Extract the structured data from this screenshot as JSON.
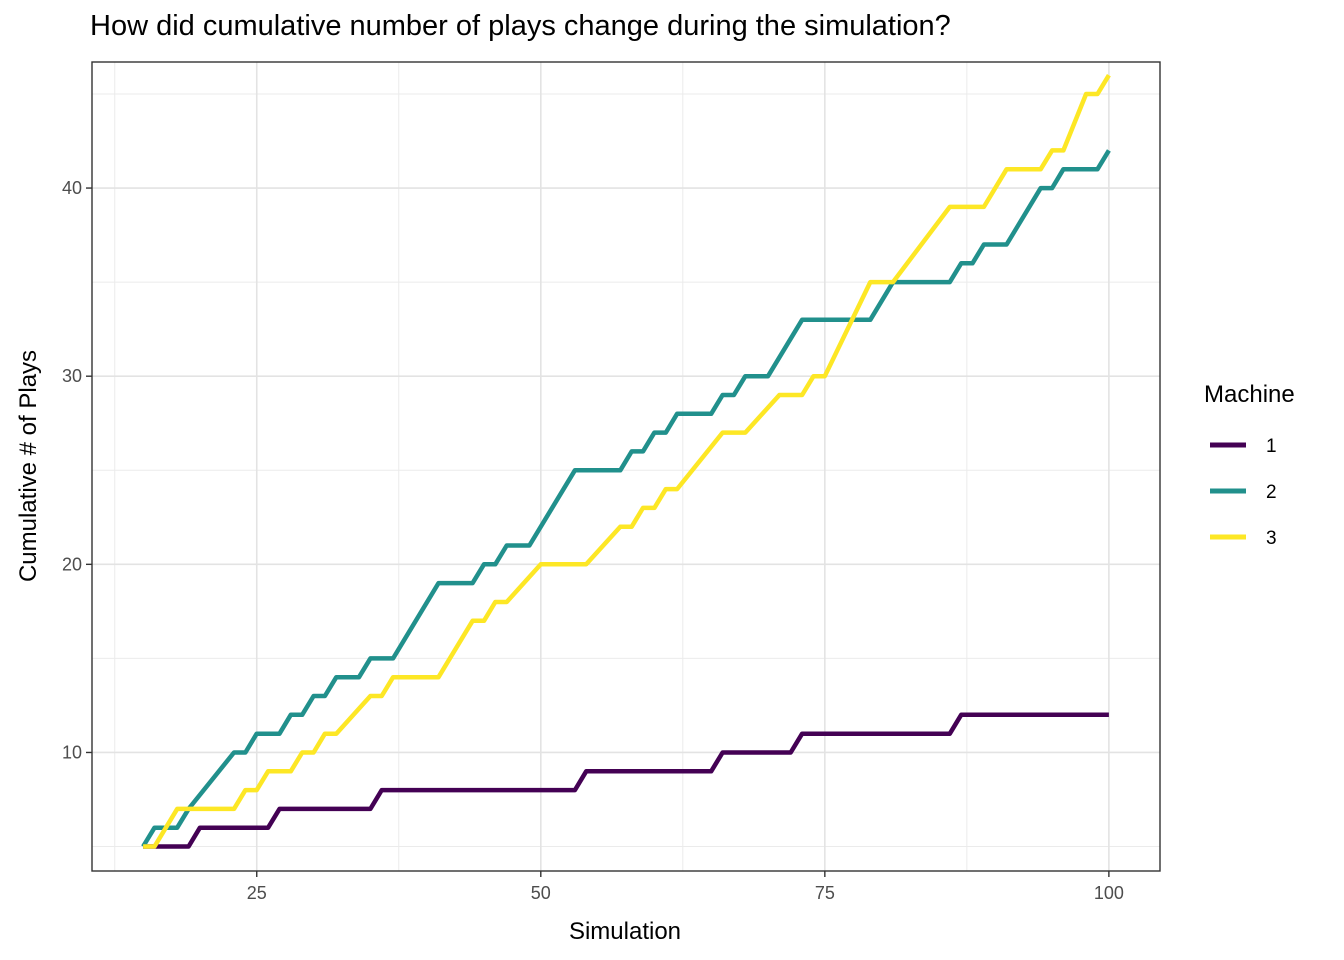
{
  "chart_data": {
    "type": "line",
    "title": "How did cumulative number of plays change during the simulation?",
    "xlabel": "Simulation",
    "ylabel": "Cumulative # of Plays",
    "xlim": [
      10.5,
      104.5
    ],
    "ylim": [
      3.7,
      46.7
    ],
    "x_ticks": [
      25,
      50,
      75,
      100
    ],
    "y_ticks": [
      10,
      20,
      30,
      40
    ],
    "x_tick_labels": [
      "25",
      "50",
      "75",
      "100"
    ],
    "y_tick_labels": [
      "10",
      "20",
      "30",
      "40"
    ],
    "grid": true,
    "legend": {
      "title": "Machine",
      "position": "right"
    },
    "series": [
      {
        "name": "1",
        "color": "#440154",
        "points": [
          [
            15,
            5
          ],
          [
            19,
            5
          ],
          [
            20,
            6
          ],
          [
            26,
            6
          ],
          [
            27,
            7
          ],
          [
            35,
            7
          ],
          [
            36,
            8
          ],
          [
            53,
            8
          ],
          [
            54,
            9
          ],
          [
            65,
            9
          ],
          [
            66,
            10
          ],
          [
            72,
            10
          ],
          [
            73,
            11
          ],
          [
            86,
            11
          ],
          [
            87,
            12
          ],
          [
            100,
            12
          ]
        ]
      },
      {
        "name": "2",
        "color": "#21908C",
        "points": [
          [
            15,
            5
          ],
          [
            16,
            6
          ],
          [
            18,
            6
          ],
          [
            19,
            7
          ],
          [
            23,
            10
          ],
          [
            24,
            10
          ],
          [
            25,
            11
          ],
          [
            27,
            11
          ],
          [
            28,
            12
          ],
          [
            29,
            12
          ],
          [
            30,
            13
          ],
          [
            31,
            13
          ],
          [
            32,
            14
          ],
          [
            34,
            14
          ],
          [
            35,
            15
          ],
          [
            37,
            15
          ],
          [
            41,
            19
          ],
          [
            44,
            19
          ],
          [
            45,
            20
          ],
          [
            46,
            20
          ],
          [
            47,
            21
          ],
          [
            49,
            21
          ],
          [
            53,
            25
          ],
          [
            57,
            25
          ],
          [
            58,
            26
          ],
          [
            59,
            26
          ],
          [
            60,
            27
          ],
          [
            61,
            27
          ],
          [
            62,
            28
          ],
          [
            65,
            28
          ],
          [
            66,
            29
          ],
          [
            67,
            29
          ],
          [
            68,
            30
          ],
          [
            70,
            30
          ],
          [
            73,
            33
          ],
          [
            79,
            33
          ],
          [
            81,
            35
          ],
          [
            86,
            35
          ],
          [
            87,
            36
          ],
          [
            88,
            36
          ],
          [
            89,
            37
          ],
          [
            91,
            37
          ],
          [
            94,
            40
          ],
          [
            95,
            40
          ],
          [
            96,
            41
          ],
          [
            99,
            41
          ],
          [
            100,
            42
          ]
        ]
      },
      {
        "name": "3",
        "color": "#FDE725",
        "points": [
          [
            15,
            5
          ],
          [
            16,
            5
          ],
          [
            18,
            7
          ],
          [
            23,
            7
          ],
          [
            24,
            8
          ],
          [
            25,
            8
          ],
          [
            26,
            9
          ],
          [
            28,
            9
          ],
          [
            29,
            10
          ],
          [
            30,
            10
          ],
          [
            31,
            11
          ],
          [
            32,
            11
          ],
          [
            35,
            13
          ],
          [
            36,
            13
          ],
          [
            37,
            14
          ],
          [
            41,
            14
          ],
          [
            44,
            17
          ],
          [
            45,
            17
          ],
          [
            46,
            18
          ],
          [
            47,
            18
          ],
          [
            50,
            20
          ],
          [
            54,
            20
          ],
          [
            57,
            22
          ],
          [
            58,
            22
          ],
          [
            59,
            23
          ],
          [
            60,
            23
          ],
          [
            61,
            24
          ],
          [
            62,
            24
          ],
          [
            66,
            27
          ],
          [
            68,
            27
          ],
          [
            71,
            29
          ],
          [
            73,
            29
          ],
          [
            74,
            30
          ],
          [
            75,
            30
          ],
          [
            79,
            35
          ],
          [
            81,
            35
          ],
          [
            86,
            39
          ],
          [
            89,
            39
          ],
          [
            91,
            41
          ],
          [
            94,
            41
          ],
          [
            95,
            42
          ],
          [
            96,
            42
          ],
          [
            98,
            45
          ],
          [
            99,
            45
          ],
          [
            100,
            46
          ]
        ]
      }
    ]
  }
}
